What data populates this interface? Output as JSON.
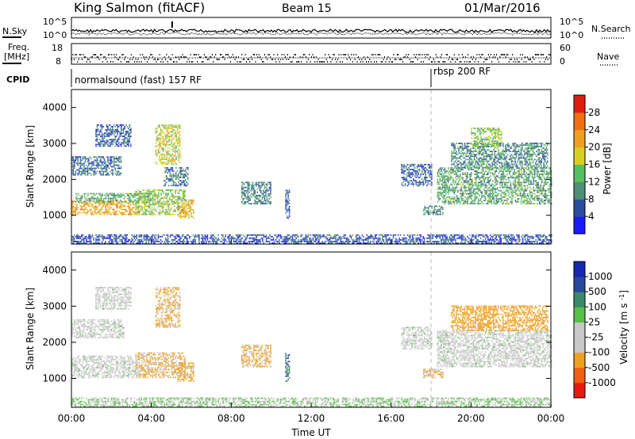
{
  "header": {
    "station": "King Salmon (fitACF)",
    "beam": "Beam 15",
    "date": "01/Mar/2016"
  },
  "left_labels": {
    "nsky": "N.Sky",
    "nsky_top": "10^5",
    "nsky_bottom": "10^0",
    "freq_line1": "Freq.",
    "freq_line2": "[MHz]",
    "freq_top": "18",
    "freq_bottom": "8",
    "cpid": "CPID"
  },
  "right_labels": {
    "nsearch": "N.Search",
    "nsearch_top": "10^5",
    "nsearch_bottom": "10^0",
    "nave": "Nave",
    "nave_top": "60",
    "nave_bottom": "0"
  },
  "cpid_modes": [
    {
      "label": "normalsound (fast) 157 RF",
      "start_hour": 0
    },
    {
      "label": "rbsp 200 RF",
      "start_hour": 18
    }
  ],
  "x_axis": {
    "label": "Time UT",
    "ticks": [
      "00:00",
      "04:00",
      "08:00",
      "12:00",
      "16:00",
      "20:00",
      "00:00"
    ],
    "range_hours": [
      0,
      24
    ]
  },
  "colors": {
    "power": [
      "#1a1aff",
      "#2a4da0",
      "#4f8f74",
      "#55c060",
      "#d8d020",
      "#f0a020",
      "#f07010",
      "#e01e10"
    ],
    "velocity": [
      "#e81a10",
      "#f06010",
      "#f0a020",
      "#c8c8c8",
      "#c8c8c8",
      "#58c048",
      "#3a8a6a",
      "#2848a0",
      "#1428b0"
    ]
  },
  "chart_data": [
    {
      "type": "heatmap",
      "panel": "power",
      "xlabel": "",
      "ylabel": "Slant Range [km]",
      "ylim": [
        200,
        4500
      ],
      "yticks": [
        "1000",
        "2000",
        "3000",
        "4000"
      ],
      "colorbar_label": "Power [dB]",
      "colorbar_ticks": [
        "4",
        "8",
        "12",
        "16",
        "20",
        "24",
        "28"
      ],
      "colorbar_range": [
        0,
        32
      ],
      "regions": [
        {
          "t0": 0.0,
          "t1": 3.4,
          "r0": 1000,
          "r1": 1400,
          "v": 22
        },
        {
          "t0": 0.2,
          "t1": 4.0,
          "r0": 1350,
          "r1": 1600,
          "v": 12
        },
        {
          "t0": 0.0,
          "t1": 2.5,
          "r0": 2100,
          "r1": 2600,
          "v": 8
        },
        {
          "t0": 1.2,
          "t1": 3.0,
          "r0": 2900,
          "r1": 3500,
          "v": 7
        },
        {
          "t0": 3.2,
          "t1": 5.7,
          "r0": 1000,
          "r1": 1700,
          "v": 16
        },
        {
          "t0": 4.2,
          "t1": 5.4,
          "r0": 2400,
          "r1": 3500,
          "v": 18
        },
        {
          "t0": 5.3,
          "t1": 6.1,
          "r0": 900,
          "r1": 1400,
          "v": 20
        },
        {
          "t0": 4.6,
          "t1": 5.8,
          "r0": 1800,
          "r1": 2300,
          "v": 8
        },
        {
          "t0": 8.5,
          "t1": 10.0,
          "r0": 1300,
          "r1": 1900,
          "v": 9
        },
        {
          "t0": 10.7,
          "t1": 10.9,
          "r0": 900,
          "r1": 1700,
          "v": 7
        },
        {
          "t0": 16.5,
          "t1": 18.0,
          "r0": 1800,
          "r1": 2400,
          "v": 7
        },
        {
          "t0": 17.6,
          "t1": 18.6,
          "r0": 1000,
          "r1": 1250,
          "v": 10
        },
        {
          "t0": 18.3,
          "t1": 24.0,
          "r0": 1300,
          "r1": 2300,
          "v": 12
        },
        {
          "t0": 19.0,
          "t1": 23.8,
          "r0": 2300,
          "r1": 3000,
          "v": 10
        },
        {
          "t0": 20.0,
          "t1": 21.5,
          "r0": 2900,
          "r1": 3400,
          "v": 15
        },
        {
          "t0": 0.0,
          "t1": 24.0,
          "r0": 200,
          "r1": 450,
          "v": 6
        }
      ]
    },
    {
      "type": "heatmap",
      "panel": "velocity",
      "xlabel": "Time UT",
      "ylabel": "Slant Range [km]",
      "ylim": [
        200,
        4500
      ],
      "yticks": [
        "1000",
        "2000",
        "3000",
        "4000"
      ],
      "colorbar_label": "Velocity [m s^-1]",
      "colorbar_ticks": [
        "-1000",
        "-500",
        "-100",
        "-25",
        "25",
        "100",
        "500",
        "1000"
      ],
      "regions": [
        {
          "t0": 0.0,
          "t1": 3.4,
          "r0": 1000,
          "r1": 1600,
          "v": 0
        },
        {
          "t0": 0.0,
          "t1": 2.6,
          "r0": 2100,
          "r1": 2600,
          "v": 0
        },
        {
          "t0": 1.2,
          "t1": 3.0,
          "r0": 2900,
          "r1": 3500,
          "v": 0
        },
        {
          "t0": 3.2,
          "t1": 5.7,
          "r0": 1000,
          "r1": 1700,
          "v": -120
        },
        {
          "t0": 4.2,
          "t1": 5.4,
          "r0": 2400,
          "r1": 3500,
          "v": -120
        },
        {
          "t0": 5.3,
          "t1": 6.1,
          "r0": 900,
          "r1": 1400,
          "v": -150
        },
        {
          "t0": 8.5,
          "t1": 10.0,
          "r0": 1300,
          "r1": 1900,
          "v": -120
        },
        {
          "t0": 10.7,
          "t1": 10.9,
          "r0": 900,
          "r1": 1700,
          "v": 400
        },
        {
          "t0": 16.5,
          "t1": 18.0,
          "r0": 1800,
          "r1": 2400,
          "v": 0
        },
        {
          "t0": 17.6,
          "t1": 18.6,
          "r0": 1000,
          "r1": 1250,
          "v": -120
        },
        {
          "t0": 18.3,
          "t1": 24.0,
          "r0": 1300,
          "r1": 2300,
          "v": 0
        },
        {
          "t0": 19.0,
          "t1": 23.8,
          "r0": 2300,
          "r1": 3000,
          "v": -300
        },
        {
          "t0": 0.0,
          "t1": 24.0,
          "r0": 200,
          "r1": 450,
          "v": 20
        }
      ]
    }
  ]
}
